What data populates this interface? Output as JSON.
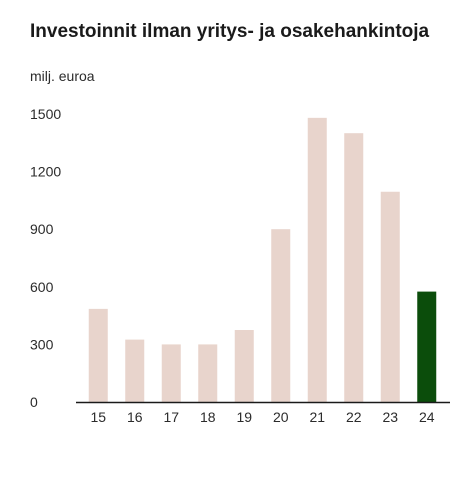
{
  "title": "Investoinnit ilman yritys- ja osakehankintoja",
  "unit_label": "milj. euroa",
  "colors": {
    "default_bar": "#e8d4cc",
    "highlight_bar": "#0b4d0b",
    "axis": "#1a1a1a"
  },
  "chart_data": {
    "type": "bar",
    "title": "Investoinnit ilman yritys- ja osakehankintoja",
    "ylabel": "milj. euroa",
    "xlabel": "",
    "categories": [
      "15",
      "16",
      "17",
      "18",
      "19",
      "20",
      "21",
      "22",
      "23",
      "24"
    ],
    "values": [
      485,
      325,
      300,
      300,
      375,
      900,
      1480,
      1400,
      1095,
      575
    ],
    "highlight": "24",
    "ylim": [
      0,
      1500
    ],
    "yticks": [
      "0",
      "300",
      "600",
      "900",
      "1200",
      "1500"
    ],
    "grid": false
  }
}
